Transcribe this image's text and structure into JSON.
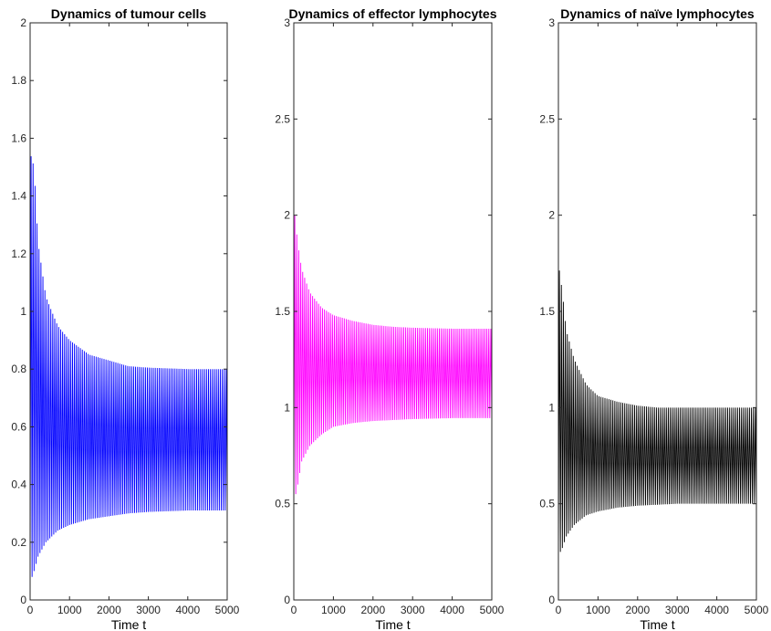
{
  "chart_data": [
    {
      "type": "line",
      "title": "Dynamics of tumour cells",
      "xlabel": "Time t",
      "ylabel": "",
      "xlim": [
        0,
        5000
      ],
      "ylim": [
        0,
        2
      ],
      "xticks": [
        0,
        1000,
        2000,
        3000,
        4000,
        5000
      ],
      "xtick_labels": [
        "0",
        "1000",
        "2000",
        "3000",
        "4000",
        "5000"
      ],
      "yticks": [
        0,
        0.2,
        0.4,
        0.6,
        0.8,
        1,
        1.2,
        1.4,
        1.6,
        1.8,
        2
      ],
      "ytick_labels": [
        "0",
        "0.2",
        "0.4",
        "0.6",
        "0.8",
        "1",
        "1.2",
        "1.4",
        "1.6",
        "1.8",
        "2"
      ],
      "color": "#0000ff",
      "grid": false,
      "series": [
        {
          "oscillation_period": 50,
          "envelope_upper": {
            "x": [
              0,
              100,
              200,
              400,
              700,
              1000,
              1500,
              2000,
              2500,
              3000,
              4000,
              5000
            ],
            "y": [
              1.55,
              1.5,
              1.24,
              1.05,
              0.95,
              0.9,
              0.85,
              0.83,
              0.81,
              0.805,
              0.8,
              0.8
            ]
          },
          "envelope_lower": {
            "x": [
              0,
              100,
              200,
              400,
              700,
              1000,
              1500,
              2000,
              2500,
              3000,
              4000,
              5000
            ],
            "y": [
              0.06,
              0.1,
              0.15,
              0.2,
              0.24,
              0.26,
              0.28,
              0.29,
              0.3,
              0.305,
              0.31,
              0.31
            ]
          },
          "final_value": 0.41
        }
      ]
    },
    {
      "type": "line",
      "title": "Dynamics of effector lymphocytes",
      "xlabel": "Time t",
      "ylabel": "",
      "xlim": [
        0,
        5000
      ],
      "ylim": [
        0,
        3
      ],
      "xticks": [
        0,
        1000,
        2000,
        3000,
        4000,
        5000
      ],
      "xtick_labels": [
        "0",
        "1000",
        "2000",
        "3000",
        "4000",
        "5000"
      ],
      "yticks": [
        0,
        0.5,
        1,
        1.5,
        2,
        2.5,
        3
      ],
      "ytick_labels": [
        "0",
        "0.5",
        "1",
        "1.5",
        "2",
        "2.5",
        "3"
      ],
      "color": "#ff00ff",
      "grid": false,
      "series": [
        {
          "oscillation_period": 50,
          "envelope_upper": {
            "x": [
              0,
              100,
              200,
              400,
              700,
              1000,
              1500,
              2000,
              2500,
              3000,
              4000,
              5000
            ],
            "y": [
              2.05,
              1.85,
              1.72,
              1.6,
              1.52,
              1.48,
              1.45,
              1.43,
              1.42,
              1.415,
              1.41,
              1.41
            ]
          },
          "envelope_lower": {
            "x": [
              0,
              100,
              200,
              400,
              700,
              1000,
              1500,
              2000,
              2500,
              3000,
              4000,
              5000
            ],
            "y": [
              0.5,
              0.6,
              0.72,
              0.8,
              0.86,
              0.9,
              0.92,
              0.93,
              0.935,
              0.94,
              0.945,
              0.945
            ]
          },
          "final_value": 1.05
        }
      ]
    },
    {
      "type": "line",
      "title": "Dynamics of naïve lymphocytes",
      "xlabel": "Time t",
      "ylabel": "",
      "xlim": [
        0,
        5000
      ],
      "ylim": [
        0,
        3
      ],
      "xticks": [
        0,
        1000,
        2000,
        3000,
        4000,
        5000
      ],
      "xtick_labels": [
        "0",
        "1000",
        "2000",
        "3000",
        "4000",
        "5000"
      ],
      "yticks": [
        0,
        0.5,
        1,
        1.5,
        2,
        2.5,
        3
      ],
      "ytick_labels": [
        "0",
        "0.5",
        "1",
        "1.5",
        "2",
        "2.5",
        "3"
      ],
      "color": "#000000",
      "grid": false,
      "series": [
        {
          "oscillation_period": 50,
          "envelope_upper": {
            "x": [
              0,
              100,
              200,
              400,
              700,
              1000,
              1500,
              2000,
              2500,
              3000,
              4000,
              5000
            ],
            "y": [
              1.75,
              1.6,
              1.4,
              1.25,
              1.12,
              1.06,
              1.03,
              1.01,
              1.0,
              1.0,
              1.0,
              1.0
            ]
          },
          "envelope_lower": {
            "x": [
              0,
              100,
              200,
              400,
              700,
              1000,
              1500,
              2000,
              2500,
              3000,
              4000,
              5000
            ],
            "y": [
              0.23,
              0.27,
              0.33,
              0.39,
              0.44,
              0.46,
              0.48,
              0.49,
              0.495,
              0.5,
              0.5,
              0.5
            ]
          },
          "final_value": 0.76
        }
      ]
    }
  ]
}
